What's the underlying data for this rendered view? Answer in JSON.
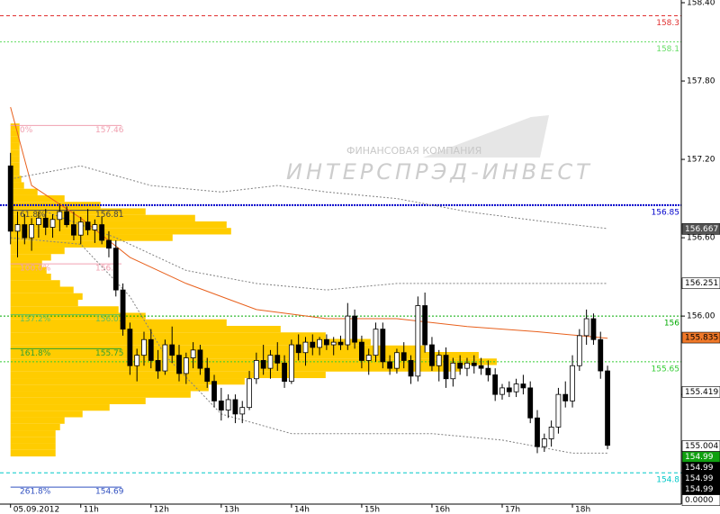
{
  "chart_data": {
    "type": "candlestick",
    "ylim": [
      154.56,
      158.4
    ],
    "yticks": [
      {
        "value": 158.4,
        "label": "158.40"
      },
      {
        "value": 157.8,
        "label": "157.80"
      },
      {
        "value": 157.2,
        "label": "157.20"
      },
      {
        "value": 156.6,
        "label": "156.60"
      },
      {
        "value": 156,
        "label": "156.00"
      },
      {
        "value": 155.4,
        "label": "155.40"
      },
      {
        "value": 154.8,
        "label": "154.80"
      }
    ],
    "xlim": [
      -1.5,
      95.5
    ],
    "xticks": [
      {
        "value": 0,
        "label": "05.09.2012"
      },
      {
        "value": 10,
        "label": "11h"
      },
      {
        "value": 20,
        "label": "12h"
      },
      {
        "value": 30,
        "label": "13h"
      },
      {
        "value": 40,
        "label": "14h"
      },
      {
        "value": 50,
        "label": "15h"
      },
      {
        "value": 60,
        "label": "16h"
      },
      {
        "value": 70,
        "label": "17h"
      },
      {
        "value": 80,
        "label": "18h"
      }
    ],
    "candle_colors": {
      "up": "#ffffff",
      "down": "#000000",
      "edge": "#000000"
    },
    "candles": [
      [
        157.15,
        157.25,
        156.55,
        156.65
      ],
      [
        156.65,
        156.8,
        156.45,
        156.7
      ],
      [
        156.7,
        156.78,
        156.55,
        156.6
      ],
      [
        156.6,
        156.75,
        156.5,
        156.7
      ],
      [
        156.7,
        156.8,
        156.6,
        156.75
      ],
      [
        156.75,
        156.82,
        156.62,
        156.68
      ],
      [
        156.68,
        156.78,
        156.6,
        156.74
      ],
      [
        156.74,
        156.86,
        156.65,
        156.8
      ],
      [
        156.8,
        156.84,
        156.68,
        156.7
      ],
      [
        156.7,
        156.8,
        156.58,
        156.62
      ],
      [
        156.62,
        156.76,
        156.55,
        156.72
      ],
      [
        156.72,
        156.82,
        156.62,
        156.66
      ],
      [
        156.66,
        156.74,
        156.56,
        156.7
      ],
      [
        156.7,
        156.76,
        156.55,
        156.58
      ],
      [
        156.58,
        156.65,
        156.45,
        156.52
      ],
      [
        156.52,
        156.58,
        156.15,
        156.2
      ],
      [
        156.2,
        156.25,
        155.85,
        155.9
      ],
      [
        155.9,
        155.95,
        155.55,
        155.62
      ],
      [
        155.62,
        155.75,
        155.5,
        155.7
      ],
      [
        155.7,
        155.88,
        155.62,
        155.82
      ],
      [
        155.82,
        155.9,
        155.6,
        155.66
      ],
      [
        155.66,
        155.74,
        155.52,
        155.58
      ],
      [
        155.58,
        155.82,
        155.55,
        155.78
      ],
      [
        155.78,
        155.92,
        155.64,
        155.7
      ],
      [
        155.7,
        155.78,
        155.5,
        155.56
      ],
      [
        155.56,
        155.72,
        155.48,
        155.68
      ],
      [
        155.68,
        155.8,
        155.6,
        155.74
      ],
      [
        155.74,
        155.78,
        155.55,
        155.6
      ],
      [
        155.6,
        155.68,
        155.45,
        155.5
      ],
      [
        155.5,
        155.55,
        155.3,
        155.35
      ],
      [
        155.35,
        155.45,
        155.2,
        155.28
      ],
      [
        155.28,
        155.4,
        155.22,
        155.36
      ],
      [
        155.36,
        155.4,
        155.18,
        155.25
      ],
      [
        155.25,
        155.35,
        155.18,
        155.3
      ],
      [
        155.3,
        155.58,
        155.28,
        155.52
      ],
      [
        155.52,
        155.72,
        155.48,
        155.66
      ],
      [
        155.66,
        155.78,
        155.55,
        155.6
      ],
      [
        155.6,
        155.74,
        155.52,
        155.7
      ],
      [
        155.7,
        155.8,
        155.58,
        155.64
      ],
      [
        155.64,
        155.7,
        155.45,
        155.5
      ],
      [
        155.5,
        155.82,
        155.48,
        155.78
      ],
      [
        155.78,
        155.86,
        155.66,
        155.72
      ],
      [
        155.72,
        155.84,
        155.62,
        155.8
      ],
      [
        155.8,
        155.86,
        155.7,
        155.76
      ],
      [
        155.76,
        155.84,
        155.7,
        155.82
      ],
      [
        155.82,
        155.86,
        155.74,
        155.78
      ],
      [
        155.78,
        155.84,
        155.7,
        155.8
      ],
      [
        155.8,
        155.85,
        155.74,
        155.78
      ],
      [
        155.78,
        156.1,
        155.74,
        156.0
      ],
      [
        156.0,
        156.05,
        155.75,
        155.8
      ],
      [
        155.8,
        155.85,
        155.6,
        155.66
      ],
      [
        155.66,
        155.75,
        155.55,
        155.7
      ],
      [
        155.7,
        155.95,
        155.65,
        155.9
      ],
      [
        155.9,
        155.95,
        155.6,
        155.65
      ],
      [
        155.65,
        155.7,
        155.55,
        155.6
      ],
      [
        155.6,
        155.75,
        155.56,
        155.72
      ],
      [
        155.72,
        155.8,
        155.6,
        155.66
      ],
      [
        155.66,
        155.7,
        155.48,
        155.54
      ],
      [
        155.54,
        156.15,
        155.5,
        156.08
      ],
      [
        156.08,
        156.18,
        155.72,
        155.78
      ],
      [
        155.78,
        155.84,
        155.58,
        155.62
      ],
      [
        155.62,
        155.74,
        155.5,
        155.7
      ],
      [
        155.7,
        155.76,
        155.45,
        155.52
      ],
      [
        155.52,
        155.68,
        155.46,
        155.64
      ],
      [
        155.64,
        155.7,
        155.55,
        155.6
      ],
      [
        155.6,
        155.68,
        155.54,
        155.64
      ],
      [
        155.64,
        155.7,
        155.56,
        155.62
      ],
      [
        155.62,
        155.68,
        155.55,
        155.6
      ],
      [
        155.6,
        155.66,
        155.5,
        155.55
      ],
      [
        155.55,
        155.6,
        155.35,
        155.4
      ],
      [
        155.4,
        155.48,
        155.36,
        155.45
      ],
      [
        155.45,
        155.5,
        155.38,
        155.42
      ],
      [
        155.42,
        155.52,
        155.38,
        155.48
      ],
      [
        155.48,
        155.55,
        155.4,
        155.45
      ],
      [
        155.45,
        155.5,
        155.18,
        155.22
      ],
      [
        155.22,
        155.28,
        154.95,
        155.0
      ],
      [
        155.0,
        155.1,
        154.96,
        155.06
      ],
      [
        155.06,
        155.2,
        155.0,
        155.15
      ],
      [
        155.15,
        155.45,
        155.1,
        155.4
      ],
      [
        155.4,
        155.5,
        155.3,
        155.35
      ],
      [
        155.35,
        155.7,
        155.3,
        155.62
      ],
      [
        155.62,
        155.9,
        155.58,
        155.85
      ],
      [
        155.85,
        156.05,
        155.78,
        155.98
      ],
      [
        155.98,
        156.02,
        155.78,
        155.82
      ],
      [
        155.82,
        155.88,
        155.52,
        155.58
      ],
      [
        155.58,
        155.62,
        154.98,
        155.01
      ]
    ],
    "profile_color": "#ffcc00",
    "profile_xlim": [
      0,
      745
    ],
    "volume_profile": [
      [
        157.45,
        10
      ],
      [
        157.4,
        10
      ],
      [
        157.35,
        10
      ],
      [
        157.3,
        10
      ],
      [
        157.25,
        10
      ],
      [
        157.2,
        10
      ],
      [
        157.15,
        10
      ],
      [
        157.1,
        10
      ],
      [
        157.05,
        12
      ],
      [
        157.0,
        15
      ],
      [
        156.95,
        30
      ],
      [
        156.9,
        60
      ],
      [
        156.85,
        100
      ],
      [
        156.8,
        150
      ],
      [
        156.75,
        205
      ],
      [
        156.7,
        240
      ],
      [
        156.65,
        245
      ],
      [
        156.6,
        180
      ],
      [
        156.55,
        110
      ],
      [
        156.5,
        60
      ],
      [
        156.45,
        45
      ],
      [
        156.4,
        35
      ],
      [
        156.35,
        40
      ],
      [
        156.3,
        45
      ],
      [
        156.25,
        55
      ],
      [
        156.2,
        70
      ],
      [
        156.15,
        80
      ],
      [
        156.1,
        75
      ],
      [
        156.05,
        120
      ],
      [
        156.0,
        150
      ],
      [
        155.95,
        240
      ],
      [
        155.9,
        300
      ],
      [
        155.85,
        350
      ],
      [
        155.8,
        400
      ],
      [
        155.75,
        460
      ],
      [
        155.7,
        520
      ],
      [
        155.65,
        540
      ],
      [
        155.6,
        500
      ],
      [
        155.55,
        350
      ],
      [
        155.5,
        260
      ],
      [
        155.45,
        220
      ],
      [
        155.4,
        200
      ],
      [
        155.35,
        150
      ],
      [
        155.3,
        110
      ],
      [
        155.25,
        80
      ],
      [
        155.2,
        60
      ],
      [
        155.15,
        55
      ],
      [
        155.1,
        50
      ],
      [
        155.05,
        50
      ],
      [
        155.0,
        50
      ],
      [
        154.95,
        50
      ]
    ],
    "lines": [
      {
        "color": "#e8601c",
        "dash": "",
        "x": [
          0,
          3,
          10,
          17,
          25,
          35,
          45,
          55,
          65,
          75,
          85
        ],
        "values": [
          157.6,
          157.0,
          156.75,
          156.45,
          156.25,
          156.05,
          155.98,
          155.98,
          155.92,
          155.88,
          155.83
        ]
      },
      {
        "color": "#808080",
        "dash": "2 2",
        "x": [
          0,
          10,
          20,
          30,
          38,
          45,
          55,
          65,
          75,
          85
        ],
        "values": [
          157.05,
          157.15,
          157.0,
          156.95,
          157.0,
          156.95,
          156.9,
          156.8,
          156.73,
          156.67
        ]
      },
      {
        "color": "#808080",
        "dash": "2 2",
        "x": [
          5,
          15,
          25,
          35,
          45,
          55,
          65,
          75,
          85
        ],
        "values": [
          156.8,
          156.6,
          156.35,
          156.25,
          156.2,
          156.25,
          156.25,
          156.25,
          156.25
        ]
      },
      {
        "color": "#808080",
        "dash": "2 2",
        "x": [
          0,
          10,
          17,
          22,
          30,
          40,
          50,
          60,
          70,
          80,
          85
        ],
        "values": [
          156.6,
          156.55,
          156.15,
          155.7,
          155.25,
          155.1,
          155.1,
          155.1,
          155.05,
          154.95,
          154.95
        ]
      }
    ],
    "levels": [
      {
        "value": 158.3,
        "color": "#e03030",
        "dash": "4 3",
        "width": 1
      },
      {
        "value": 158.1,
        "color": "#66dd66",
        "dash": "2 2",
        "width": 1
      },
      {
        "value": 156.85,
        "color": "#0000cc",
        "dash": "2 1",
        "width": 2
      },
      {
        "value": 156,
        "color": "#00aa00",
        "dash": "2 2",
        "width": 1
      },
      {
        "value": 155.65,
        "color": "#33cc33",
        "dash": "2 2",
        "width": 1
      },
      {
        "value": 154.8,
        "color": "#00c8c8",
        "dash": "4 3",
        "width": 1
      }
    ],
    "fibo": [
      {
        "pct": "0%",
        "price": 157.46,
        "color": "#f0a0b0"
      },
      {
        "pct": "61.8%",
        "price": 156.81,
        "color": "#444444"
      },
      {
        "pct": "100.0%",
        "price": 156.4,
        "color": "#f0a0b0"
      },
      {
        "pct": "137.2%",
        "price": 156.01,
        "color": "#60c060"
      },
      {
        "pct": "161.8%",
        "price": 155.75,
        "color": "#30a030"
      },
      {
        "pct": "261.8%",
        "price": 154.69,
        "color": "#3050c0"
      }
    ],
    "price_tags": [
      {
        "value": 156.667,
        "bg": "#555555",
        "fg": "#ffffff"
      },
      {
        "value": 156.251,
        "bg": "#ffffff",
        "fg": "#000000"
      },
      {
        "value": 155.835,
        "bg": "#f07828",
        "fg": "#000000"
      },
      {
        "value": 155.419,
        "bg": "#ffffff",
        "fg": "#000000"
      },
      {
        "value": 155.004,
        "bg": "#ffffff",
        "fg": "#000000"
      },
      {
        "value": 154.99,
        "bg": "#10a010",
        "fg": "#ffffff"
      },
      {
        "value": 154.99,
        "bg": "#000000",
        "fg": "#ffffff"
      },
      {
        "value": 154.99,
        "bg": "#000000",
        "fg": "#ffffff"
      },
      {
        "value": 154.99,
        "bg": "#000000",
        "fg": "#ffffff"
      }
    ],
    "indicator_tag": "0.0000",
    "watermark": {
      "line1": "ФИНАНСОВАЯ КОМПАНИЯ",
      "line2": "ИНТЕРСПРЭД-ИНВЕСТ"
    }
  }
}
